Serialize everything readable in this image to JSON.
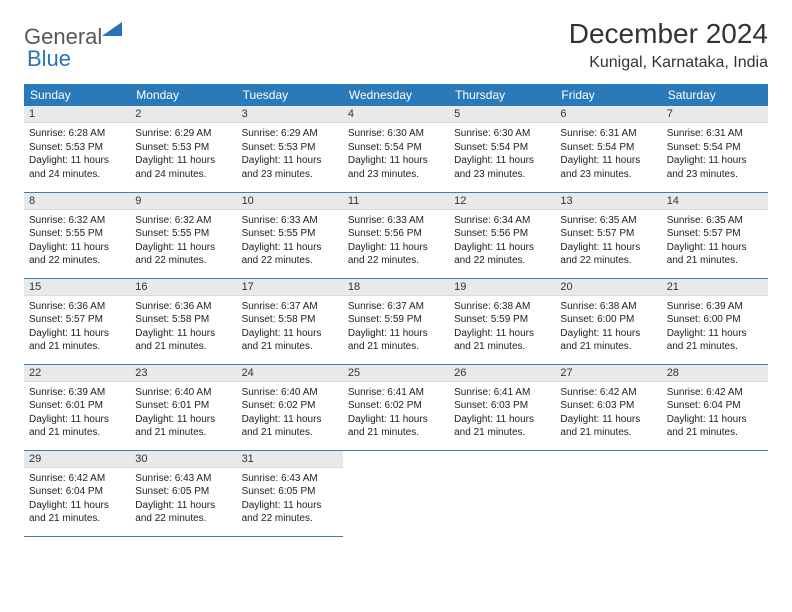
{
  "logo": {
    "general": "General",
    "blue": "Blue"
  },
  "header": {
    "month_title": "December 2024",
    "location": "Kunigal, Karnataka, India"
  },
  "colors": {
    "header_bg": "#2a7ab9",
    "header_text": "#ffffff",
    "daynum_bg": "#e8e9ea",
    "row_border": "#3b7fb5",
    "logo_gray": "#55595c",
    "logo_blue": "#2a72b5"
  },
  "weekdays": [
    "Sunday",
    "Monday",
    "Tuesday",
    "Wednesday",
    "Thursday",
    "Friday",
    "Saturday"
  ],
  "weeks": [
    [
      {
        "n": "1",
        "sr": "Sunrise: 6:28 AM",
        "ss": "Sunset: 5:53 PM",
        "dl": "Daylight: 11 hours and 24 minutes."
      },
      {
        "n": "2",
        "sr": "Sunrise: 6:29 AM",
        "ss": "Sunset: 5:53 PM",
        "dl": "Daylight: 11 hours and 24 minutes."
      },
      {
        "n": "3",
        "sr": "Sunrise: 6:29 AM",
        "ss": "Sunset: 5:53 PM",
        "dl": "Daylight: 11 hours and 23 minutes."
      },
      {
        "n": "4",
        "sr": "Sunrise: 6:30 AM",
        "ss": "Sunset: 5:54 PM",
        "dl": "Daylight: 11 hours and 23 minutes."
      },
      {
        "n": "5",
        "sr": "Sunrise: 6:30 AM",
        "ss": "Sunset: 5:54 PM",
        "dl": "Daylight: 11 hours and 23 minutes."
      },
      {
        "n": "6",
        "sr": "Sunrise: 6:31 AM",
        "ss": "Sunset: 5:54 PM",
        "dl": "Daylight: 11 hours and 23 minutes."
      },
      {
        "n": "7",
        "sr": "Sunrise: 6:31 AM",
        "ss": "Sunset: 5:54 PM",
        "dl": "Daylight: 11 hours and 23 minutes."
      }
    ],
    [
      {
        "n": "8",
        "sr": "Sunrise: 6:32 AM",
        "ss": "Sunset: 5:55 PM",
        "dl": "Daylight: 11 hours and 22 minutes."
      },
      {
        "n": "9",
        "sr": "Sunrise: 6:32 AM",
        "ss": "Sunset: 5:55 PM",
        "dl": "Daylight: 11 hours and 22 minutes."
      },
      {
        "n": "10",
        "sr": "Sunrise: 6:33 AM",
        "ss": "Sunset: 5:55 PM",
        "dl": "Daylight: 11 hours and 22 minutes."
      },
      {
        "n": "11",
        "sr": "Sunrise: 6:33 AM",
        "ss": "Sunset: 5:56 PM",
        "dl": "Daylight: 11 hours and 22 minutes."
      },
      {
        "n": "12",
        "sr": "Sunrise: 6:34 AM",
        "ss": "Sunset: 5:56 PM",
        "dl": "Daylight: 11 hours and 22 minutes."
      },
      {
        "n": "13",
        "sr": "Sunrise: 6:35 AM",
        "ss": "Sunset: 5:57 PM",
        "dl": "Daylight: 11 hours and 22 minutes."
      },
      {
        "n": "14",
        "sr": "Sunrise: 6:35 AM",
        "ss": "Sunset: 5:57 PM",
        "dl": "Daylight: 11 hours and 21 minutes."
      }
    ],
    [
      {
        "n": "15",
        "sr": "Sunrise: 6:36 AM",
        "ss": "Sunset: 5:57 PM",
        "dl": "Daylight: 11 hours and 21 minutes."
      },
      {
        "n": "16",
        "sr": "Sunrise: 6:36 AM",
        "ss": "Sunset: 5:58 PM",
        "dl": "Daylight: 11 hours and 21 minutes."
      },
      {
        "n": "17",
        "sr": "Sunrise: 6:37 AM",
        "ss": "Sunset: 5:58 PM",
        "dl": "Daylight: 11 hours and 21 minutes."
      },
      {
        "n": "18",
        "sr": "Sunrise: 6:37 AM",
        "ss": "Sunset: 5:59 PM",
        "dl": "Daylight: 11 hours and 21 minutes."
      },
      {
        "n": "19",
        "sr": "Sunrise: 6:38 AM",
        "ss": "Sunset: 5:59 PM",
        "dl": "Daylight: 11 hours and 21 minutes."
      },
      {
        "n": "20",
        "sr": "Sunrise: 6:38 AM",
        "ss": "Sunset: 6:00 PM",
        "dl": "Daylight: 11 hours and 21 minutes."
      },
      {
        "n": "21",
        "sr": "Sunrise: 6:39 AM",
        "ss": "Sunset: 6:00 PM",
        "dl": "Daylight: 11 hours and 21 minutes."
      }
    ],
    [
      {
        "n": "22",
        "sr": "Sunrise: 6:39 AM",
        "ss": "Sunset: 6:01 PM",
        "dl": "Daylight: 11 hours and 21 minutes."
      },
      {
        "n": "23",
        "sr": "Sunrise: 6:40 AM",
        "ss": "Sunset: 6:01 PM",
        "dl": "Daylight: 11 hours and 21 minutes."
      },
      {
        "n": "24",
        "sr": "Sunrise: 6:40 AM",
        "ss": "Sunset: 6:02 PM",
        "dl": "Daylight: 11 hours and 21 minutes."
      },
      {
        "n": "25",
        "sr": "Sunrise: 6:41 AM",
        "ss": "Sunset: 6:02 PM",
        "dl": "Daylight: 11 hours and 21 minutes."
      },
      {
        "n": "26",
        "sr": "Sunrise: 6:41 AM",
        "ss": "Sunset: 6:03 PM",
        "dl": "Daylight: 11 hours and 21 minutes."
      },
      {
        "n": "27",
        "sr": "Sunrise: 6:42 AM",
        "ss": "Sunset: 6:03 PM",
        "dl": "Daylight: 11 hours and 21 minutes."
      },
      {
        "n": "28",
        "sr": "Sunrise: 6:42 AM",
        "ss": "Sunset: 6:04 PM",
        "dl": "Daylight: 11 hours and 21 minutes."
      }
    ],
    [
      {
        "n": "29",
        "sr": "Sunrise: 6:42 AM",
        "ss": "Sunset: 6:04 PM",
        "dl": "Daylight: 11 hours and 21 minutes."
      },
      {
        "n": "30",
        "sr": "Sunrise: 6:43 AM",
        "ss": "Sunset: 6:05 PM",
        "dl": "Daylight: 11 hours and 22 minutes."
      },
      {
        "n": "31",
        "sr": "Sunrise: 6:43 AM",
        "ss": "Sunset: 6:05 PM",
        "dl": "Daylight: 11 hours and 22 minutes."
      },
      null,
      null,
      null,
      null
    ]
  ]
}
